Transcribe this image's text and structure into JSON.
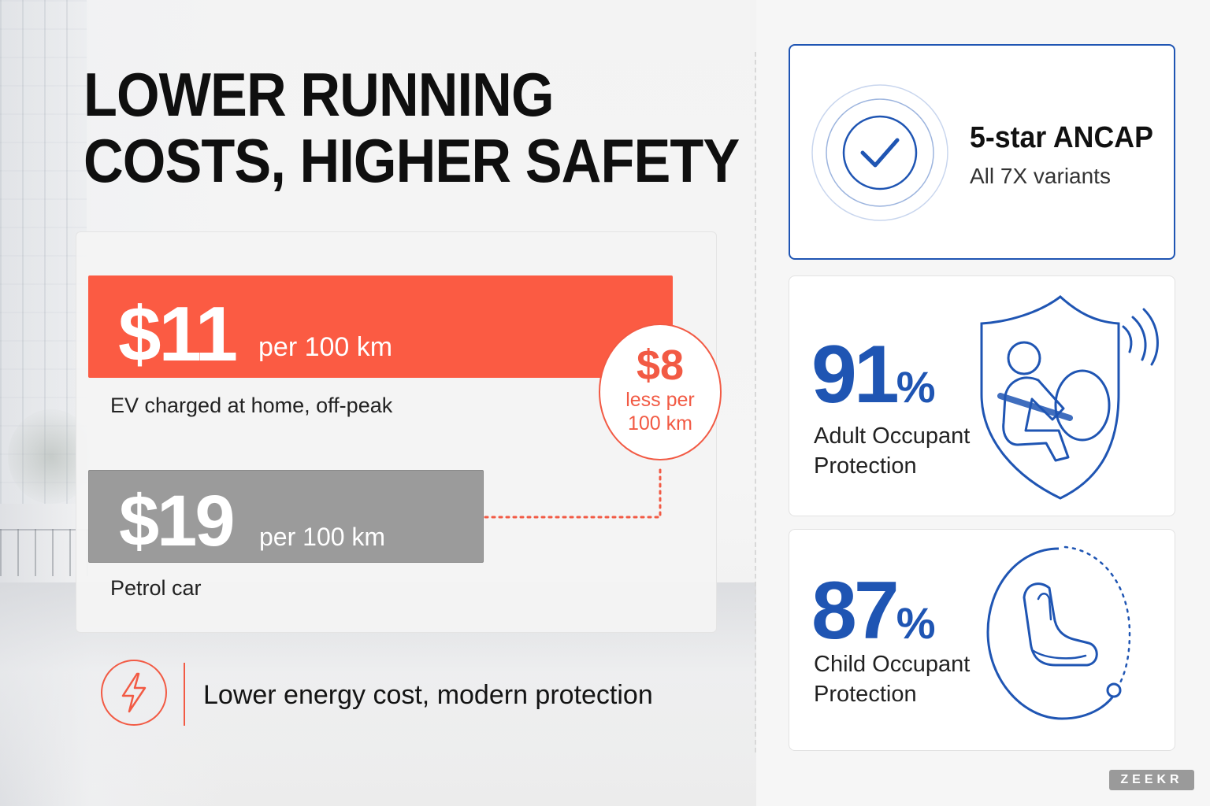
{
  "headline": {
    "line1": "LOWER RUNNING",
    "line2": "COSTS, HIGHER SAFETY"
  },
  "running_costs": {
    "ev": {
      "amount": "$11",
      "unit": "per 100 km",
      "caption": "EV charged at home, off-peak",
      "color": "#fb5b43"
    },
    "petrol": {
      "amount": "$19",
      "unit": "per 100 km",
      "caption": "Petrol car",
      "color": "#9b9b9b"
    },
    "savings": {
      "amount": "$8",
      "line1": "less per",
      "line2": "100 km"
    }
  },
  "footer": {
    "icon": "lightning-bolt-icon",
    "text": "Lower energy cost, modern protection"
  },
  "safety": {
    "ancap": {
      "icon": "checkmark-icon",
      "title": "5-star ANCAP",
      "subtitle": "All 7X variants"
    },
    "adult": {
      "value": "91",
      "unit": "%",
      "label_line1": "Adult Occupant",
      "label_line2": "Protection",
      "icon": "shield-seatbelt-occupant-icon"
    },
    "child": {
      "value": "87",
      "unit": "%",
      "label_line1": "Child Occupant",
      "label_line2": "Protection",
      "icon": "child-seat-icon"
    }
  },
  "colors": {
    "accent_orange": "#f25a44",
    "accent_blue": "#1f55b3"
  },
  "brand": "ZEEKR"
}
